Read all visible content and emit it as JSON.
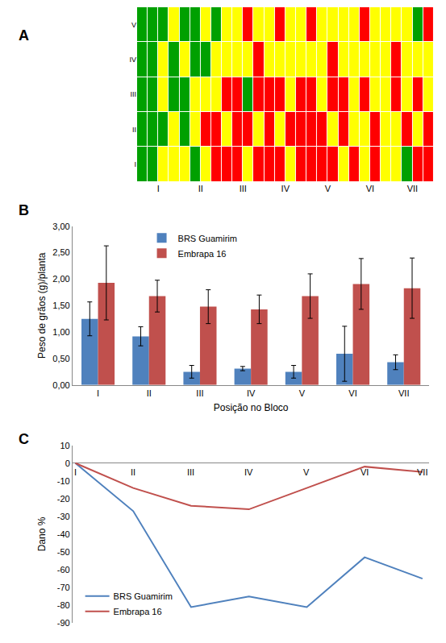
{
  "chart_data": [
    {
      "type": "heatmap",
      "panel": "A",
      "rows": [
        "V",
        "IV",
        "III",
        "II",
        "I"
      ],
      "x_labels": [
        "I",
        "II",
        "III",
        "IV",
        "V",
        "VI",
        "VII"
      ],
      "colors": [
        "#00a000",
        "#ffff00",
        "#ff0000"
      ],
      "cells": [
        [
          1,
          1,
          1,
          2,
          1,
          1,
          2,
          1,
          2,
          2,
          3,
          2,
          2,
          3,
          2,
          2,
          3,
          2,
          2,
          2,
          2,
          3,
          2,
          2,
          2,
          2,
          1,
          3
        ],
        [
          1,
          1,
          2,
          1,
          2,
          1,
          1,
          2,
          2,
          2,
          2,
          3,
          2,
          2,
          2,
          2,
          2,
          2,
          3,
          2,
          2,
          2,
          2,
          2,
          3,
          2,
          2,
          2
        ],
        [
          1,
          1,
          2,
          1,
          1,
          2,
          2,
          2,
          3,
          3,
          1,
          3,
          3,
          3,
          2,
          3,
          3,
          2,
          3,
          3,
          2,
          3,
          2,
          2,
          3,
          2,
          3,
          2
        ],
        [
          1,
          1,
          1,
          2,
          1,
          2,
          3,
          3,
          2,
          3,
          3,
          2,
          3,
          2,
          3,
          3,
          3,
          3,
          2,
          3,
          2,
          2,
          3,
          2,
          2,
          3,
          2,
          3
        ],
        [
          1,
          1,
          2,
          2,
          2,
          1,
          2,
          3,
          3,
          3,
          2,
          3,
          3,
          3,
          2,
          3,
          3,
          3,
          3,
          2,
          3,
          2,
          3,
          2,
          2,
          1,
          3,
          3
        ]
      ]
    },
    {
      "type": "bar",
      "panel": "B",
      "x_label": "Posição no Bloco",
      "y_label": "Peso de grãos (g)/planta",
      "categories": [
        "I",
        "II",
        "III",
        "IV",
        "V",
        "VI",
        "VII"
      ],
      "series": [
        {
          "name": "BRS Guamirim",
          "color": "#4f81bd",
          "values": [
            1.25,
            0.92,
            0.25,
            0.31,
            0.25,
            0.59,
            0.43
          ],
          "errors": [
            0.32,
            0.18,
            0.12,
            0.04,
            0.12,
            0.52,
            0.14
          ]
        },
        {
          "name": "Embrapa 16",
          "color": "#c0504d",
          "values": [
            1.93,
            1.68,
            1.48,
            1.43,
            1.68,
            1.91,
            1.83
          ],
          "errors": [
            0.7,
            0.3,
            0.32,
            0.27,
            0.42,
            0.48,
            0.57
          ]
        }
      ],
      "ylim": [
        0,
        3
      ],
      "yticks": [
        {
          "value": 0,
          "label": "0,00"
        },
        {
          "value": 0.5,
          "label": "0,50"
        },
        {
          "value": 1,
          "label": "1,00"
        },
        {
          "value": 1.5,
          "label": "1,50"
        },
        {
          "value": 2,
          "label": "2,00"
        },
        {
          "value": 2.5,
          "label": "2,50"
        },
        {
          "value": 3,
          "label": "3,00"
        }
      ],
      "grid": false,
      "legend": "top left"
    },
    {
      "type": "line",
      "panel": "C",
      "y_label": "Dano %",
      "categories": [
        "I",
        "II",
        "III",
        "IV",
        "V",
        "VI",
        "VII"
      ],
      "series": [
        {
          "name": "BRS Guamirim",
          "color": "#4f81bd",
          "values": [
            0,
            -27,
            -81,
            -75,
            -81,
            -53,
            -65
          ]
        },
        {
          "name": "Embrapa 16",
          "color": "#c0504d",
          "values": [
            0,
            -14,
            -24,
            -26,
            -14,
            -2,
            -5
          ]
        }
      ],
      "ylim": [
        -90,
        10
      ],
      "yticks": [
        -90,
        -80,
        -70,
        -60,
        -50,
        -40,
        -30,
        -20,
        -10,
        0,
        10
      ],
      "grid": false,
      "legend": "bottom left"
    }
  ]
}
